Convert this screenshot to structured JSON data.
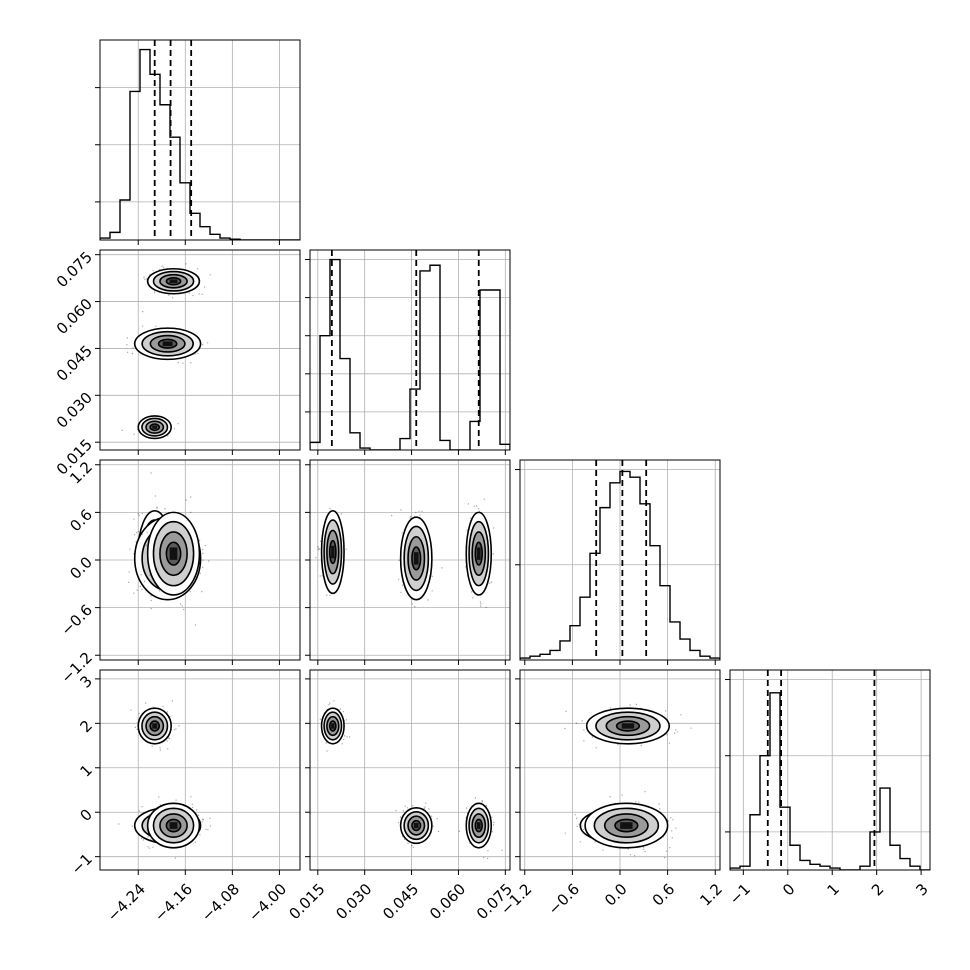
{
  "chart_data": {
    "type": "corner",
    "title": "",
    "parameters": [
      {
        "range": [
          -4.305,
          -3.965
        ],
        "ticks": [
          -4.24,
          -4.16,
          -4.08,
          -4.0
        ],
        "tick_labels": [
          "−4.24",
          "−4.16",
          "−4.08",
          "−4.00"
        ],
        "quantiles": [
          -4.212,
          -4.185,
          -4.15
        ],
        "histogram": {
          "edges_start": -4.305,
          "bin_width": 0.017,
          "counts": [
            1,
            4,
            21,
            78,
            100,
            87,
            71,
            54,
            30,
            14,
            7,
            3,
            1,
            0.4,
            0,
            0,
            0,
            0,
            0,
            0
          ],
          "count_ticks": [
            20,
            50,
            80
          ]
        }
      },
      {
        "range": [
          0.0125,
          0.0765
        ],
        "ticks": [
          0.015,
          0.03,
          0.045,
          0.06,
          0.075
        ],
        "tick_labels": [
          "0.015",
          "0.030",
          "0.045",
          "0.060",
          "0.075"
        ],
        "quantiles": [
          0.0195,
          0.0465,
          0.0665
        ],
        "histogram": {
          "edges_start": 0.0125,
          "bin_width": 0.0032,
          "counts": [
            4,
            60,
            100,
            48,
            9,
            1,
            0,
            0,
            0,
            6,
            32,
            94,
            97,
            5,
            0,
            0,
            15,
            84,
            84,
            3
          ],
          "count_ticks": [
            20,
            40,
            60,
            80,
            100
          ]
        }
      },
      {
        "range": [
          -1.26,
          1.26
        ],
        "ticks": [
          -1.2,
          -0.6,
          0.0,
          0.6,
          1.2
        ],
        "tick_labels": [
          "−1.2",
          "−0.6",
          "0.0",
          "0.6",
          "1.2"
        ],
        "quantiles": [
          -0.3,
          0.03,
          0.33
        ],
        "histogram": {
          "edges_start": -1.26,
          "bin_width": 0.126,
          "counts": [
            1,
            2,
            3,
            5,
            10,
            18,
            33,
            56,
            80,
            93,
            99,
            96,
            82,
            60,
            39,
            20,
            11,
            5,
            2,
            1
          ],
          "count_ticks": [
            50,
            100
          ]
        }
      },
      {
        "range": [
          -1.3,
          3.2
        ],
        "ticks": [
          -1,
          0,
          1,
          2,
          3
        ],
        "tick_labels": [
          "−1",
          "0",
          "1",
          "2",
          "3"
        ],
        "quantiles": [
          -0.45,
          -0.15,
          1.95
        ],
        "histogram": {
          "edges_start": -1.3,
          "bin_width": 0.225,
          "counts": [
            1,
            2,
            29,
            60,
            93,
            33,
            13,
            5,
            3,
            2,
            1,
            0,
            0,
            2,
            20,
            43,
            13,
            6,
            2,
            0
          ],
          "count_ticks": [
            20,
            60,
            100
          ]
        }
      }
    ],
    "clusters": [
      {
        "name": "",
        "mean": [
          -4.212,
          0.0198,
          0.1,
          1.94
        ],
        "sd": [
          0.014,
          0.0018,
          0.26,
          0.2
        ],
        "weight": 0.333
      },
      {
        "name": "",
        "mean": [
          -4.19,
          0.0465,
          0.02,
          -0.3
        ],
        "sd": [
          0.028,
          0.0025,
          0.26,
          0.2
        ],
        "weight": 0.333
      },
      {
        "name": "",
        "mean": [
          -4.18,
          0.0665,
          0.08,
          -0.3
        ],
        "sd": [
          0.022,
          0.002,
          0.26,
          0.25
        ],
        "weight": 0.333
      }
    ],
    "grid": true,
    "contour_levels": [
      0.12,
      0.39,
      0.68,
      0.86
    ]
  }
}
